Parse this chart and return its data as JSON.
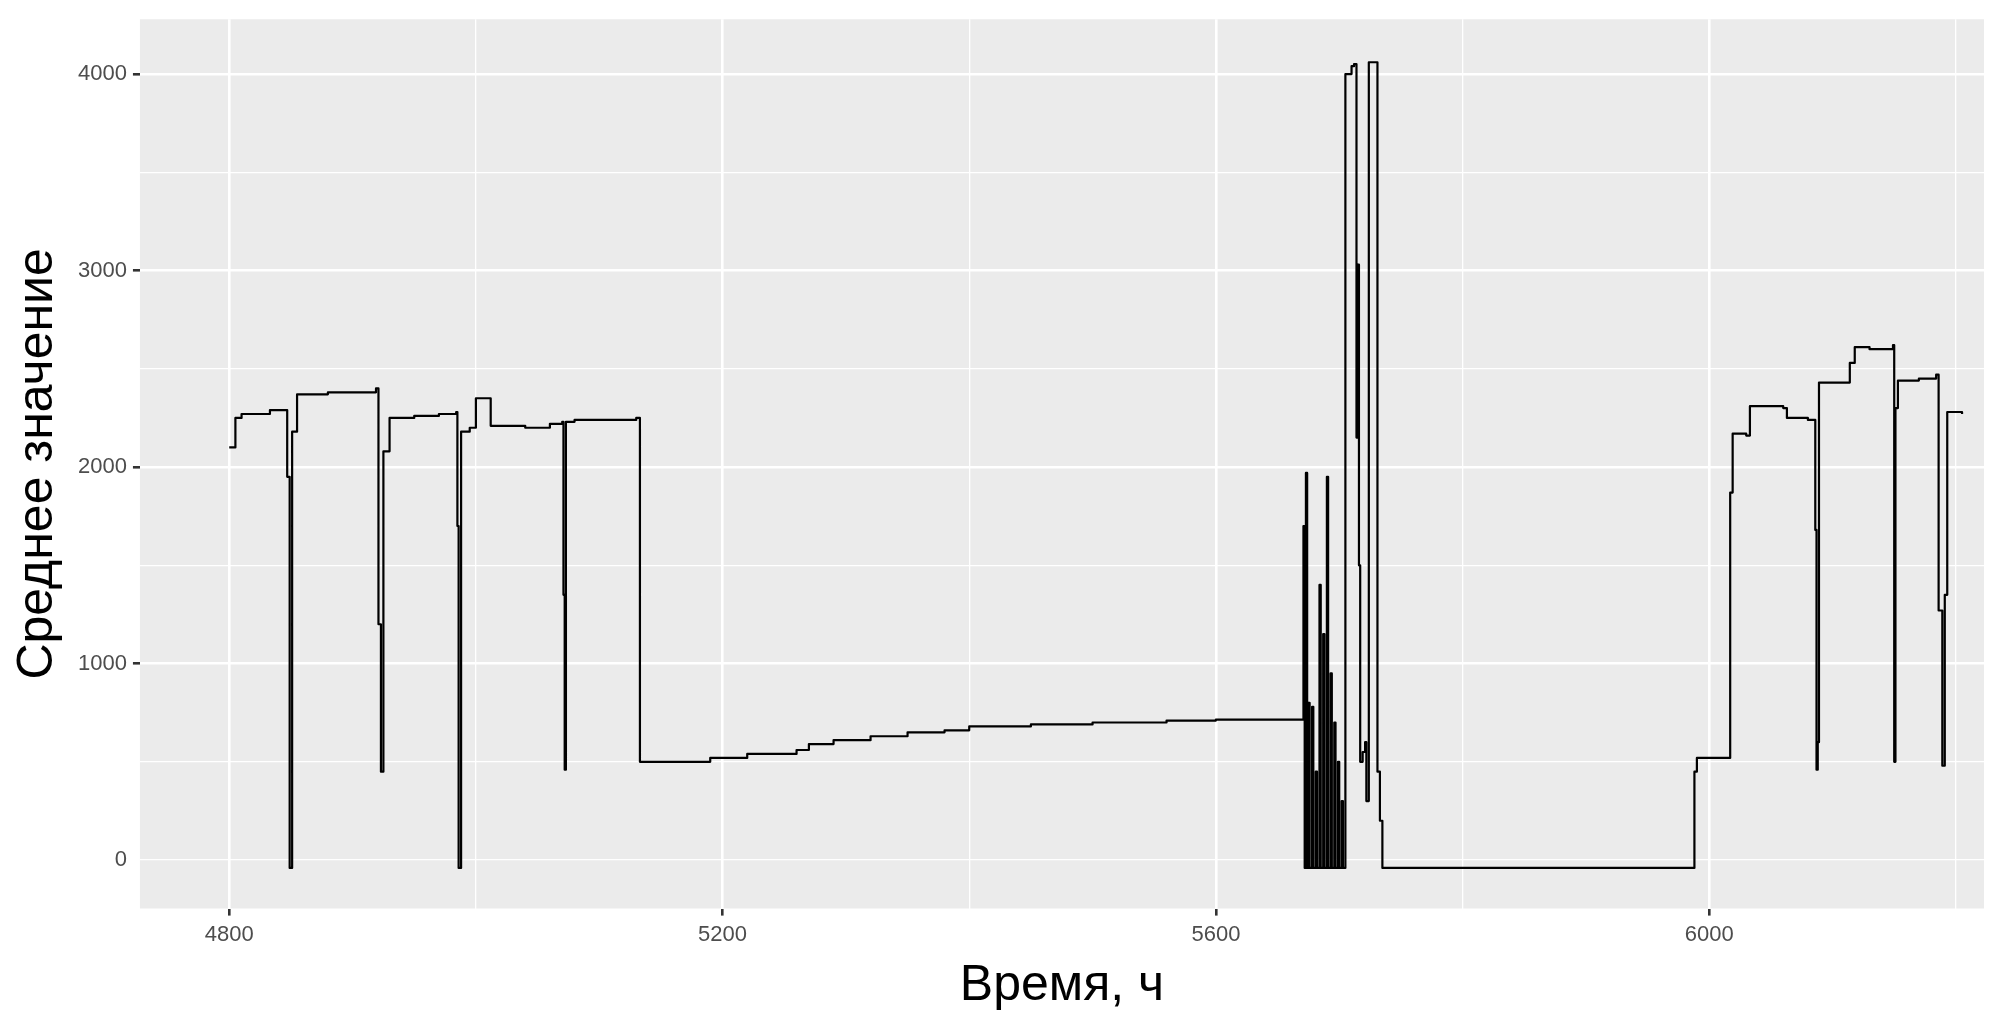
{
  "chart_data": {
    "type": "step",
    "xlabel": "Время, ч",
    "ylabel": "Среднее значение",
    "xlim": [
      4727.6,
      6222.8
    ],
    "ylim": [
      -247,
      4279
    ],
    "xticks": [
      4800,
      {
        "value": 5000,
        "label": null
      },
      5200,
      {
        "value": 5400,
        "label": null
      },
      5600,
      {
        "value": 5800,
        "label": null
      },
      6000,
      {
        "value": 6200,
        "label": null
      }
    ],
    "yticks": [
      0,
      {
        "value": 500,
        "label": null
      },
      1000,
      {
        "value": 1500,
        "label": null
      },
      2000,
      {
        "value": 2500,
        "label": null
      },
      3000,
      {
        "value": 3500,
        "label": null
      },
      4000
    ],
    "grid": true,
    "legend": false,
    "marker": "none",
    "line_style": "solid",
    "series": [
      {
        "color": "#000000",
        "x": [
          4800,
          4805,
          4810,
          4833,
          4847,
          4849,
          4851,
          4855,
          4880,
          4900,
          4919,
          4921,
          4923,
          4925,
          4930,
          4950,
          4970,
          4984,
          4985,
          4986,
          4988,
          4995,
          5000,
          5012,
          5040,
          5060,
          5070,
          5071,
          5072,
          5073,
          5080,
          5130,
          5133,
          5180,
          5190,
          5220,
          5260,
          5270,
          5290,
          5320,
          5350,
          5380,
          5400,
          5450,
          5500,
          5560,
          5600,
          5671,
          5672,
          5673,
          5674,
          5675,
          5676,
          5678,
          5679,
          5681,
          5682,
          5684,
          5685,
          5687,
          5688,
          5690,
          5691,
          5693,
          5694,
          5696,
          5697,
          5699,
          5700,
          5702,
          5703,
          5705,
          5710,
          5712,
          5714,
          5715,
          5716,
          5717,
          5719,
          5721,
          5722,
          5724,
          5731,
          5733,
          5735,
          5988,
          5990,
          6017,
          6019,
          6030,
          6033,
          6060,
          6063,
          6080,
          6086,
          6087,
          6088,
          6089,
          6111,
          6114,
          6118,
          6130,
          6149,
          6150,
          6151,
          6153,
          6170,
          6184,
          6186,
          6189,
          6191,
          6193,
          6205
        ],
        "values": [
          2100,
          2250,
          2270,
          2290,
          1950,
          -40,
          2180,
          2370,
          2380,
          2380,
          2400,
          1200,
          450,
          2080,
          2250,
          2260,
          2270,
          2280,
          1700,
          -40,
          2180,
          2200,
          2350,
          2210,
          2200,
          2220,
          2230,
          1350,
          460,
          2230,
          2240,
          2250,
          500,
          500,
          520,
          540,
          560,
          590,
          610,
          630,
          650,
          660,
          680,
          690,
          700,
          710,
          715,
          1700,
          -40,
          1970,
          -40,
          800,
          -40,
          780,
          -40,
          450,
          -40,
          1400,
          -40,
          1150,
          -40,
          1950,
          -40,
          950,
          -40,
          700,
          -40,
          500,
          -40,
          300,
          -40,
          4000,
          4040,
          4050,
          2150,
          3030,
          1500,
          500,
          550,
          600,
          300,
          4060,
          450,
          200,
          -40,
          450,
          520,
          1870,
          2170,
          2160,
          2310,
          2300,
          2250,
          2240,
          1680,
          460,
          600,
          2430,
          2430,
          2530,
          2610,
          2600,
          2620,
          500,
          2300,
          2440,
          2450,
          2470,
          1270,
          480,
          1350,
          2280,
          2270
        ]
      }
    ]
  }
}
